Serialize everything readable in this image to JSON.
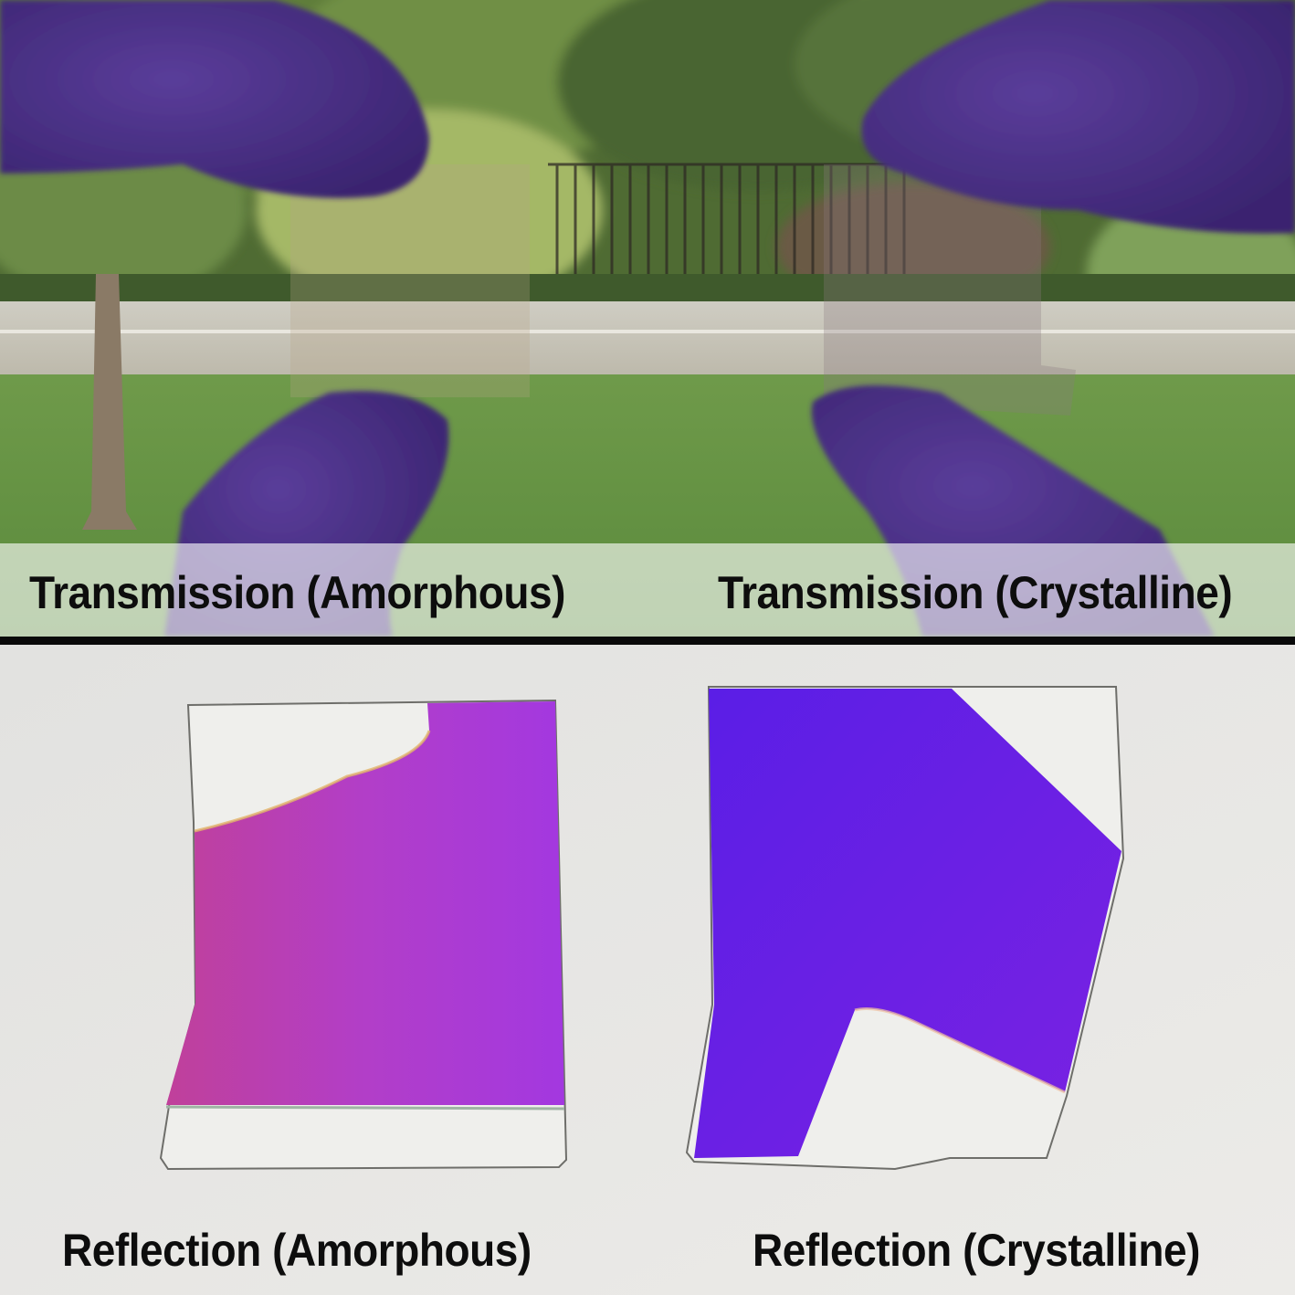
{
  "captions": {
    "transmission_amorphous": "Transmission (Amorphous)",
    "transmission_crystalline": "Transmission (Crystalline)",
    "reflection_amorphous": "Reflection (Amorphous)",
    "reflection_crystalline": "Reflection (Crystalline)"
  },
  "colors": {
    "glove": "#4a2f86",
    "amorphous_film": "#b13bd6",
    "crystalline_film": "#6a1fe6",
    "paper": "#e6e6e4",
    "divider": "#0a0a0a"
  }
}
